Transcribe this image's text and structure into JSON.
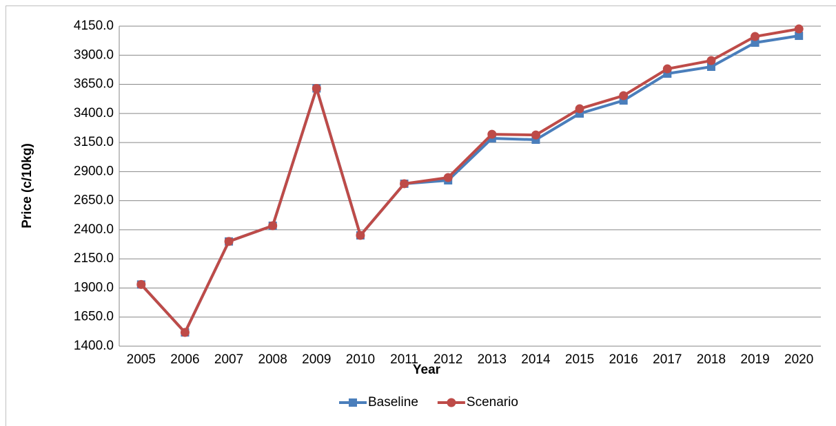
{
  "chart_data": {
    "type": "line",
    "x_label": "Year",
    "y_label": "Price (c/10kg)",
    "categories": [
      "2005",
      "2006",
      "2007",
      "2008",
      "2009",
      "2010",
      "2011",
      "2012",
      "2013",
      "2014",
      "2015",
      "2016",
      "2017",
      "2018",
      "2019",
      "2020"
    ],
    "series": [
      {
        "name": "Baseline",
        "color": "#4a7ebb",
        "marker": "square",
        "values": [
          1930,
          1518,
          2300,
          2435,
          3615,
          2352,
          2796,
          2825,
          3186,
          3174,
          3399,
          3511,
          3742,
          3801,
          4008,
          4067
        ]
      },
      {
        "name": "Scenario",
        "color": "#be4b48",
        "marker": "circle",
        "values": [
          1930,
          1518,
          2300,
          2435,
          3615,
          2352,
          2796,
          2849,
          3221,
          3215,
          3440,
          3553,
          3783,
          3854,
          4061,
          4126
        ]
      }
    ],
    "ylim": [
      1400,
      4150
    ],
    "yticks": [
      {
        "value": 1400,
        "label": "1400.0"
      },
      {
        "value": 1650,
        "label": "1650.0"
      },
      {
        "value": 1900,
        "label": "1900.0"
      },
      {
        "value": 2150,
        "label": "2150.0"
      },
      {
        "value": 2400,
        "label": "2400.0"
      },
      {
        "value": 2650,
        "label": "2650.0"
      },
      {
        "value": 2900,
        "label": "2900.0"
      },
      {
        "value": 3150,
        "label": "3150.0"
      },
      {
        "value": 3400,
        "label": "3400.0"
      },
      {
        "value": 3650,
        "label": "3650.0"
      },
      {
        "value": 3900,
        "label": "3900.0"
      },
      {
        "value": 4150,
        "label": "4150.0"
      }
    ],
    "grid": true,
    "legend": "bottom"
  }
}
